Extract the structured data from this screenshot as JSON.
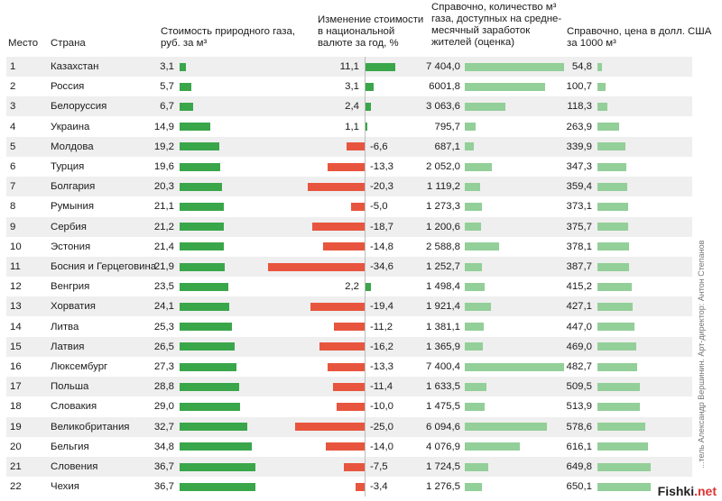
{
  "headers": {
    "rank": "Место",
    "country": "Страна",
    "price": "Стоимость природного газа,\nруб. за м³",
    "change": "Изменение стоимости\nв национальной\nвалюте за год, %",
    "volume": "Справочно, количество м³\nгаза, доступных на средне-\nмесячный заработок\nжителей (оценка)",
    "usd": "Справочно, цена в долл. США\nза 1000 м³"
  },
  "credit": "...тель Александр Вершинин. Арт-директор: Антон Степанов",
  "watermark": {
    "main": "Fishki",
    "suffix": ".net"
  },
  "chart_data": {
    "type": "table",
    "columns": [
      "rank",
      "country",
      "price_rub_m3",
      "change_pct",
      "m3_per_salary",
      "usd_per_1000m3"
    ],
    "rows": [
      {
        "rank": "1",
        "country": "Казахстан",
        "price": 3.1,
        "price_label": "3,1",
        "change": 11.1,
        "change_label": "11,1",
        "volume": 7404.0,
        "volume_label": "7 404,0",
        "usd": 54.8,
        "usd_label": "54,8"
      },
      {
        "rank": "2",
        "country": "Россия",
        "price": 5.7,
        "price_label": "5,7",
        "change": 3.1,
        "change_label": "3,1",
        "volume": 6001.8,
        "volume_label": "6001,8",
        "usd": 100.7,
        "usd_label": "100,7"
      },
      {
        "rank": "3",
        "country": "Белоруссия",
        "price": 6.7,
        "price_label": "6,7",
        "change": 2.4,
        "change_label": "2,4",
        "volume": 3063.6,
        "volume_label": "3 063,6",
        "usd": 118.3,
        "usd_label": "118,3"
      },
      {
        "rank": "4",
        "country": "Украина",
        "price": 14.9,
        "price_label": "14,9",
        "change": 1.1,
        "change_label": "1,1",
        "volume": 795.7,
        "volume_label": "795,7",
        "usd": 263.9,
        "usd_label": "263,9"
      },
      {
        "rank": "5",
        "country": "Молдова",
        "price": 19.2,
        "price_label": "19,2",
        "change": -6.6,
        "change_label": "-6,6",
        "volume": 687.1,
        "volume_label": "687,1",
        "usd": 339.9,
        "usd_label": "339,9"
      },
      {
        "rank": "6",
        "country": "Турция",
        "price": 19.6,
        "price_label": "19,6",
        "change": -13.3,
        "change_label": "-13,3",
        "volume": 2052.0,
        "volume_label": "2 052,0",
        "usd": 347.3,
        "usd_label": "347,3"
      },
      {
        "rank": "7",
        "country": "Болгария",
        "price": 20.3,
        "price_label": "20,3",
        "change": -20.3,
        "change_label": "-20,3",
        "volume": 1119.2,
        "volume_label": "1 119,2",
        "usd": 359.4,
        "usd_label": "359,4"
      },
      {
        "rank": "8",
        "country": "Румыния",
        "price": 21.1,
        "price_label": "21,1",
        "change": -5.0,
        "change_label": "-5,0",
        "volume": 1273.3,
        "volume_label": "1 273,3",
        "usd": 373.1,
        "usd_label": "373,1"
      },
      {
        "rank": "9",
        "country": "Сербия",
        "price": 21.2,
        "price_label": "21,2",
        "change": -18.7,
        "change_label": "-18,7",
        "volume": 1200.6,
        "volume_label": "1 200,6",
        "usd": 375.7,
        "usd_label": "375,7"
      },
      {
        "rank": "10",
        "country": "Эстония",
        "price": 21.4,
        "price_label": "21,4",
        "change": -14.8,
        "change_label": "-14,8",
        "volume": 2588.8,
        "volume_label": "2 588,8",
        "usd": 378.1,
        "usd_label": "378,1"
      },
      {
        "rank": "11",
        "country": "Босния и Герцеговина",
        "price": 21.9,
        "price_label": "21,9",
        "change": -34.6,
        "change_label": "-34,6",
        "volume": 1252.7,
        "volume_label": "1 252,7",
        "usd": 387.7,
        "usd_label": "387,7"
      },
      {
        "rank": "12",
        "country": "Венгрия",
        "price": 23.5,
        "price_label": "23,5",
        "change": 2.2,
        "change_label": "2,2",
        "volume": 1498.4,
        "volume_label": "1 498,4",
        "usd": 415.2,
        "usd_label": "415,2"
      },
      {
        "rank": "13",
        "country": "Хорватия",
        "price": 24.1,
        "price_label": "24,1",
        "change": -19.4,
        "change_label": "-19,4",
        "volume": 1921.4,
        "volume_label": "1 921,4",
        "usd": 427.1,
        "usd_label": "427,1"
      },
      {
        "rank": "14",
        "country": "Литва",
        "price": 25.3,
        "price_label": "25,3",
        "change": -11.2,
        "change_label": "-11,2",
        "volume": 1381.1,
        "volume_label": "1 381,1",
        "usd": 447.0,
        "usd_label": "447,0"
      },
      {
        "rank": "15",
        "country": "Латвия",
        "price": 26.5,
        "price_label": "26,5",
        "change": -16.2,
        "change_label": "-16,2",
        "volume": 1365.9,
        "volume_label": "1 365,9",
        "usd": 469.0,
        "usd_label": "469,0"
      },
      {
        "rank": "16",
        "country": "Люксембург",
        "price": 27.3,
        "price_label": "27,3",
        "change": -13.3,
        "change_label": "-13,3",
        "volume": 7400.4,
        "volume_label": "7 400,4",
        "usd": 482.7,
        "usd_label": "482,7"
      },
      {
        "rank": "17",
        "country": "Польша",
        "price": 28.8,
        "price_label": "28,8",
        "change": -11.4,
        "change_label": "-11,4",
        "volume": 1633.5,
        "volume_label": "1 633,5",
        "usd": 509.5,
        "usd_label": "509,5"
      },
      {
        "rank": "18",
        "country": "Словакия",
        "price": 29.0,
        "price_label": "29,0",
        "change": -10.0,
        "change_label": "-10,0",
        "volume": 1475.5,
        "volume_label": "1 475,5",
        "usd": 513.9,
        "usd_label": "513,9"
      },
      {
        "rank": "19",
        "country": "Великобритания",
        "price": 32.7,
        "price_label": "32,7",
        "change": -25.0,
        "change_label": "-25,0",
        "volume": 6094.6,
        "volume_label": "6 094,6",
        "usd": 578.6,
        "usd_label": "578,6"
      },
      {
        "rank": "20",
        "country": "Бельгия",
        "price": 34.8,
        "price_label": "34,8",
        "change": -14.0,
        "change_label": "-14,0",
        "volume": 4076.9,
        "volume_label": "4 076,9",
        "usd": 616.1,
        "usd_label": "616,1"
      },
      {
        "rank": "21",
        "country": "Словения",
        "price": 36.7,
        "price_label": "36,7",
        "change": -7.5,
        "change_label": "-7,5",
        "volume": 1724.5,
        "volume_label": "1 724,5",
        "usd": 649.8,
        "usd_label": "649,8"
      },
      {
        "rank": "22",
        "country": "Чехия",
        "price": 36.7,
        "price_label": "36,7",
        "change": -3.4,
        "change_label": "-3,4",
        "volume": 1276.5,
        "volume_label": "1 276,5",
        "usd": 650.1,
        "usd_label": "650,1"
      }
    ],
    "colors": {
      "price": "#3aa64a",
      "increase": "#3aa64a",
      "decrease": "#e8553e",
      "reference": "#93cf98",
      "stripe": "#efefef"
    }
  }
}
